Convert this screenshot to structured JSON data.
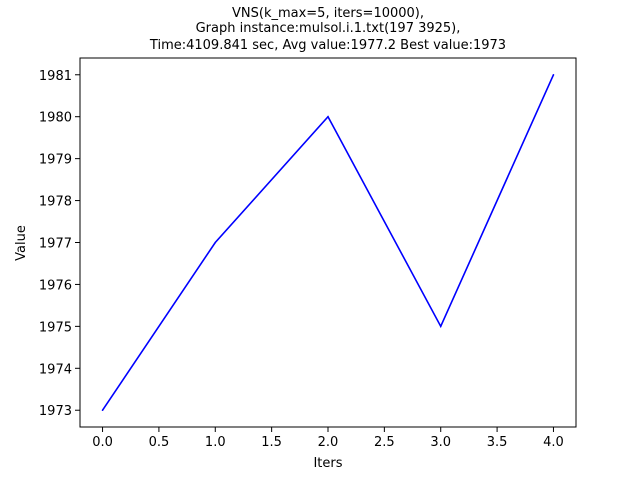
{
  "chart_data": {
    "type": "line",
    "title_lines": [
      "VNS(k_max=5, iters=10000),",
      "Graph instance:mulsol.i.1.txt(197 3925),",
      "Time:4109.841 sec, Avg value:1977.2 Best value:1973"
    ],
    "xlabel": "Iters",
    "ylabel": "Value",
    "xlim": [
      -0.2,
      4.2
    ],
    "ylim": [
      1972.6,
      1981.4
    ],
    "xticks": [
      0.0,
      0.5,
      1.0,
      1.5,
      2.0,
      2.5,
      3.0,
      3.5,
      4.0
    ],
    "xtick_labels": [
      "0.0",
      "0.5",
      "1.0",
      "1.5",
      "2.0",
      "2.5",
      "3.0",
      "3.5",
      "4.0"
    ],
    "yticks": [
      1973,
      1974,
      1975,
      1976,
      1977,
      1978,
      1979,
      1980,
      1981
    ],
    "ytick_labels": [
      "1973",
      "1974",
      "1975",
      "1976",
      "1977",
      "1978",
      "1979",
      "1980",
      "1981"
    ],
    "grid": false,
    "series": [
      {
        "color": "#0000ff",
        "x": [
          0,
          1,
          2,
          3,
          4
        ],
        "y": [
          1973,
          1977,
          1980,
          1975,
          1981
        ]
      }
    ]
  }
}
